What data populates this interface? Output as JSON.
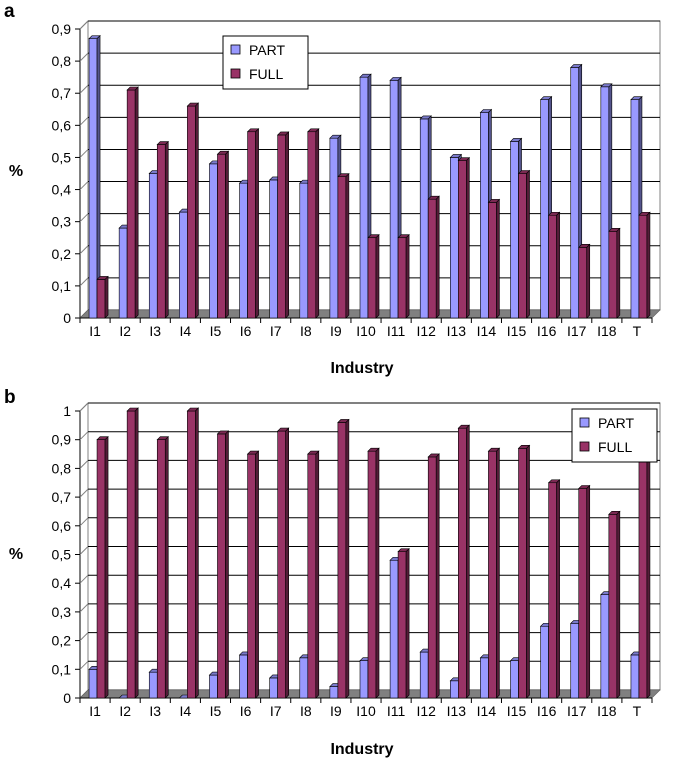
{
  "chart_data": [
    {
      "type": "bar",
      "panel_label": "a",
      "xlabel": "Industry",
      "ylabel": "%",
      "ylim": [
        0,
        0.9
      ],
      "yticks": [
        "0",
        "0,1",
        "0,2",
        "0,3",
        "0,4",
        "0,5",
        "0,6",
        "0,7",
        "0,8",
        "0,9"
      ],
      "categories": [
        "I1",
        "I2",
        "I3",
        "I4",
        "I5",
        "I6",
        "I7",
        "I8",
        "I9",
        "I10",
        "I11",
        "I12",
        "I13",
        "I14",
        "I15",
        "I16",
        "I17",
        "I18",
        "T"
      ],
      "series": [
        {
          "name": "PART",
          "color": "#9999ff",
          "values": [
            0.87,
            0.28,
            0.45,
            0.33,
            0.48,
            0.42,
            0.43,
            0.42,
            0.56,
            0.75,
            0.74,
            0.62,
            0.5,
            0.64,
            0.55,
            0.68,
            0.78,
            0.72,
            0.68
          ]
        },
        {
          "name": "FULL",
          "color": "#993366",
          "values": [
            0.12,
            0.71,
            0.54,
            0.66,
            0.51,
            0.58,
            0.57,
            0.58,
            0.44,
            0.25,
            0.25,
            0.37,
            0.49,
            0.36,
            0.45,
            0.32,
            0.22,
            0.27,
            0.32
          ]
        }
      ],
      "grid": true,
      "legend_position": "top-center"
    },
    {
      "type": "bar",
      "panel_label": "b",
      "xlabel": "Industry",
      "ylabel": "%",
      "ylim": [
        0,
        1
      ],
      "yticks": [
        "0",
        "0,1",
        "0,2",
        "0,3",
        "0,4",
        "0,5",
        "0,6",
        "0,7",
        "0,8",
        "0,9",
        "1"
      ],
      "categories": [
        "I1",
        "I2",
        "I3",
        "I4",
        "I5",
        "I6",
        "I7",
        "I8",
        "I9",
        "I10",
        "I11",
        "I12",
        "I13",
        "I14",
        "I15",
        "I16",
        "I17",
        "I18",
        "T"
      ],
      "series": [
        {
          "name": "PART",
          "color": "#9999ff",
          "values": [
            0.1,
            0.0,
            0.09,
            0.0,
            0.08,
            0.15,
            0.07,
            0.14,
            0.04,
            0.13,
            0.48,
            0.16,
            0.06,
            0.14,
            0.13,
            0.25,
            0.26,
            0.36,
            0.15
          ]
        },
        {
          "name": "FULL",
          "color": "#993366",
          "values": [
            0.9,
            1.0,
            0.9,
            1.0,
            0.92,
            0.85,
            0.93,
            0.85,
            0.96,
            0.86,
            0.51,
            0.84,
            0.94,
            0.86,
            0.87,
            0.75,
            0.73,
            0.64,
            0.84
          ]
        }
      ],
      "grid": true,
      "legend_position": "top-right"
    }
  ]
}
